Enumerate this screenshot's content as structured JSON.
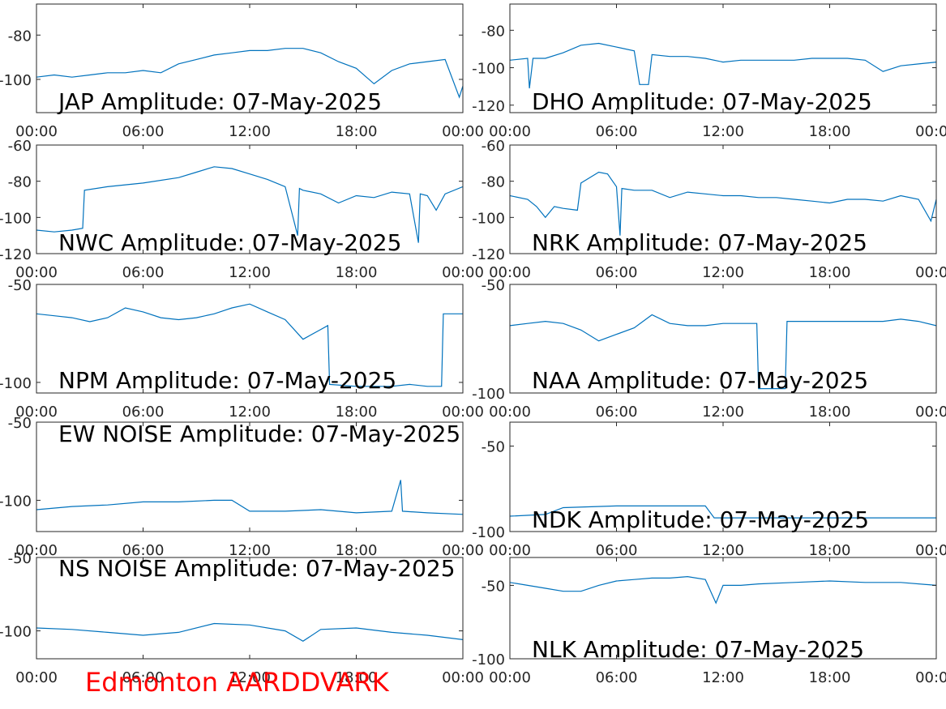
{
  "chart_data": [
    {
      "type": "line",
      "title": "JAP Amplitude: 07-May-2025",
      "x": [
        0,
        1,
        2,
        3,
        4,
        5,
        6,
        7,
        8,
        9,
        10,
        11,
        12,
        13,
        14,
        15,
        16,
        17,
        18,
        19,
        20,
        21,
        22,
        23,
        23.8,
        24
      ],
      "series": [
        {
          "color": "#0072bd",
          "values": [
            -99,
            -98,
            -99,
            -98,
            -97,
            -97,
            -96,
            -97,
            -93,
            -91,
            -89,
            -88,
            -87,
            -87,
            -86,
            -86,
            -88,
            -92,
            -95,
            -102,
            -96,
            -93,
            -92,
            -91,
            -108,
            -103
          ]
        }
      ],
      "xlim": [
        0,
        24
      ],
      "xticks": [
        {
          "value": 0,
          "label": "00:00"
        },
        {
          "value": 6,
          "label": "06:00"
        },
        {
          "value": 12,
          "label": "12:00"
        },
        {
          "value": 18,
          "label": "18:00"
        },
        {
          "value": 24,
          "label": "00:00"
        }
      ],
      "ylim": [
        -115,
        -66
      ],
      "yticks": [
        -100,
        -80
      ]
    },
    {
      "type": "line",
      "title": "DHO Amplitude: 07-May-2025",
      "x": [
        0,
        1,
        1.1,
        1.3,
        2,
        3,
        4,
        5,
        6,
        7,
        7.3,
        7.8,
        8,
        9,
        10,
        11,
        12,
        13,
        14,
        15,
        16,
        17,
        18,
        19,
        20,
        21,
        22,
        23,
        24
      ],
      "series": [
        {
          "color": "#0072bd",
          "values": [
            -96,
            -95,
            -111,
            -95,
            -95,
            -92,
            -88,
            -87,
            -89,
            -91,
            -109,
            -109,
            -93,
            -94,
            -94,
            -95,
            -97,
            -96,
            -96,
            -96,
            -96,
            -95,
            -95,
            -95,
            -96,
            -102,
            -99,
            -98,
            -97
          ]
        }
      ],
      "xlim": [
        0,
        24
      ],
      "xticks": [
        {
          "value": 0,
          "label": "00:00"
        },
        {
          "value": 6,
          "label": "06:00"
        },
        {
          "value": 12,
          "label": "12:00"
        },
        {
          "value": 18,
          "label": "18:00"
        },
        {
          "value": 24,
          "label": "00:00"
        }
      ],
      "ylim": [
        -124,
        -66
      ],
      "yticks": [
        -120,
        -100,
        -80
      ]
    },
    {
      "type": "line",
      "title": "NWC Amplitude: 07-May-2025",
      "x": [
        0,
        1,
        2,
        2.6,
        2.7,
        4,
        6,
        8,
        9,
        10,
        11,
        12,
        13,
        14,
        14.7,
        14.8,
        15,
        16,
        17,
        18,
        19,
        20,
        21,
        21.5,
        21.6,
        22,
        22.5,
        23,
        24
      ],
      "series": [
        {
          "color": "#0072bd",
          "values": [
            -107,
            -108,
            -107,
            -106,
            -85,
            -83,
            -81,
            -78,
            -75,
            -72,
            -73,
            -76,
            -79,
            -83,
            -110,
            -84,
            -85,
            -87,
            -92,
            -88,
            -89,
            -86,
            -87,
            -114,
            -87,
            -88,
            -96,
            -87,
            -83
          ]
        }
      ],
      "xlim": [
        0,
        24
      ],
      "xticks": [
        {
          "value": 0,
          "label": "00:00"
        },
        {
          "value": 6,
          "label": "06:00"
        },
        {
          "value": 12,
          "label": "12:00"
        },
        {
          "value": 18,
          "label": "18:00"
        },
        {
          "value": 24,
          "label": "00:00"
        }
      ],
      "ylim": [
        -120,
        -60
      ],
      "yticks": [
        -120,
        -100,
        -80,
        -60
      ]
    },
    {
      "type": "line",
      "title": "NRK Amplitude: 07-May-2025",
      "x": [
        0,
        1,
        1.5,
        2,
        2.5,
        3,
        3.8,
        4,
        5,
        5.5,
        6,
        6.2,
        6.3,
        7,
        8,
        9,
        10,
        11,
        12,
        13,
        14,
        15,
        16,
        17,
        18,
        19,
        20,
        21,
        22,
        23,
        23.7,
        24
      ],
      "series": [
        {
          "color": "#0072bd",
          "values": [
            -88,
            -90,
            -94,
            -100,
            -94,
            -95,
            -96,
            -81,
            -75,
            -76,
            -83,
            -110,
            -84,
            -85,
            -85,
            -89,
            -86,
            -87,
            -88,
            -88,
            -89,
            -89,
            -90,
            -91,
            -92,
            -90,
            -90,
            -91,
            -88,
            -90,
            -102,
            -90
          ]
        }
      ],
      "xlim": [
        0,
        24
      ],
      "xticks": [
        {
          "value": 0,
          "label": "00:00"
        },
        {
          "value": 6,
          "label": "06:00"
        },
        {
          "value": 12,
          "label": "12:00"
        },
        {
          "value": 18,
          "label": "18:00"
        },
        {
          "value": 24,
          "label": "00:00"
        }
      ],
      "ylim": [
        -120,
        -60
      ],
      "yticks": [
        -120,
        -100,
        -80,
        -60
      ]
    },
    {
      "type": "line",
      "title": "NPM Amplitude: 07-May-2025",
      "x": [
        0,
        1,
        2,
        3,
        4,
        5,
        6,
        7,
        8,
        9,
        10,
        11,
        12,
        13,
        14,
        15,
        16,
        16.4,
        16.5,
        18,
        20,
        21,
        22,
        22.8,
        22.9,
        24
      ],
      "series": [
        {
          "color": "#0072bd",
          "values": [
            -65,
            -66,
            -67,
            -69,
            -67,
            -62,
            -64,
            -67,
            -68,
            -67,
            -65,
            -62,
            -60,
            -64,
            -68,
            -78,
            -73,
            -71,
            -101,
            -102,
            -102,
            -101,
            -102,
            -102,
            -65,
            -65
          ]
        }
      ],
      "xlim": [
        0,
        24
      ],
      "xticks": [
        {
          "value": 0,
          "label": "00:00"
        },
        {
          "value": 6,
          "label": "06:00"
        },
        {
          "value": 12,
          "label": "12:00"
        },
        {
          "value": 18,
          "label": "18:00"
        },
        {
          "value": 24,
          "label": "00:00"
        }
      ],
      "ylim": [
        -105.4,
        -50
      ],
      "yticks": [
        -100,
        -50
      ]
    },
    {
      "type": "line",
      "title": "NAA Amplitude: 07-May-2025",
      "x": [
        0,
        1,
        2,
        3,
        4,
        5,
        6,
        7,
        8,
        9,
        10,
        11,
        12,
        13,
        13.9,
        14,
        15.5,
        15.6,
        17,
        18,
        19,
        20,
        21,
        22,
        23,
        24
      ],
      "series": [
        {
          "color": "#0072bd",
          "values": [
            -69,
            -68,
            -67,
            -68,
            -71,
            -76,
            -73,
            -70,
            -64,
            -68,
            -69,
            -69,
            -68,
            -68,
            -68,
            -98,
            -98,
            -67,
            -67,
            -67,
            -67,
            -67,
            -67,
            -66,
            -67,
            -69
          ]
        }
      ],
      "xlim": [
        0,
        24
      ],
      "xticks": [
        {
          "value": 0,
          "label": "00:00"
        },
        {
          "value": 6,
          "label": "06:00"
        },
        {
          "value": 12,
          "label": "12:00"
        },
        {
          "value": 18,
          "label": "18:00"
        },
        {
          "value": 24,
          "label": "00:00"
        }
      ],
      "ylim": [
        -100,
        -50
      ],
      "yticks": [
        -100,
        -50
      ]
    },
    {
      "type": "line",
      "title": "EW NOISE Amplitude: 07-May-2025",
      "x": [
        0,
        2,
        4,
        6,
        8,
        10,
        11,
        12,
        14,
        16,
        18,
        20,
        20.5,
        20.6,
        22,
        24
      ],
      "series": [
        {
          "color": "#0072bd",
          "values": [
            -106,
            -104,
            -103,
            -101,
            -101,
            -100,
            -100,
            -107,
            -107,
            -106,
            -108,
            -107,
            -87,
            -107,
            -108,
            -109
          ]
        }
      ],
      "xlim": [
        0,
        24
      ],
      "xticks": [
        {
          "value": 0,
          "label": "00:00"
        },
        {
          "value": 6,
          "label": "06:00"
        },
        {
          "value": 12,
          "label": "12:00"
        },
        {
          "value": 18,
          "label": "18:00"
        },
        {
          "value": 24,
          "label": "00:00"
        }
      ],
      "ylim": [
        -120,
        -50
      ],
      "yticks": [
        -100,
        -50
      ]
    },
    {
      "type": "line",
      "title": "NDK Amplitude: 07-May-2025",
      "x": [
        0,
        2,
        3,
        6,
        9,
        11,
        11.5,
        14,
        18,
        22,
        24
      ],
      "series": [
        {
          "color": "#0072bd",
          "values": [
            -91,
            -90,
            -86,
            -85,
            -85,
            -85,
            -92,
            -92,
            -92,
            -92,
            -92
          ]
        }
      ],
      "xlim": [
        0,
        24
      ],
      "xticks": [
        {
          "value": 0,
          "label": "00:00"
        },
        {
          "value": 6,
          "label": "06:00"
        },
        {
          "value": 12,
          "label": "12:00"
        },
        {
          "value": 18,
          "label": "18:00"
        },
        {
          "value": 24,
          "label": "00:00"
        }
      ],
      "ylim": [
        -100,
        -36
      ],
      "yticks": [
        -100,
        -50
      ]
    },
    {
      "type": "line",
      "title": "NS NOISE Amplitude: 07-May-2025",
      "x": [
        0,
        2,
        4,
        6,
        8,
        10,
        12,
        14,
        15,
        16,
        18,
        20,
        22,
        24
      ],
      "series": [
        {
          "color": "#0072bd",
          "values": [
            -98,
            -99,
            -101,
            -103,
            -101,
            -95,
            -96,
            -100,
            -107,
            -99,
            -98,
            -101,
            -103,
            -106
          ]
        }
      ],
      "xlim": [
        0,
        24
      ],
      "xticks": [
        {
          "value": 0,
          "label": "00:00"
        },
        {
          "value": 6,
          "label": "06:00"
        },
        {
          "value": 12,
          "label": "12:00"
        },
        {
          "value": 18,
          "label": "18:00"
        },
        {
          "value": 24,
          "label": "00:00"
        }
      ],
      "ylim": [
        -119,
        -50
      ],
      "yticks": [
        -100,
        -50
      ]
    },
    {
      "type": "line",
      "title": "NLK Amplitude: 07-May-2025",
      "x": [
        0,
        1,
        2,
        3,
        4,
        5,
        6,
        7,
        8,
        9,
        10,
        11,
        11.6,
        12,
        13,
        14,
        16,
        18,
        20,
        22,
        24
      ],
      "series": [
        {
          "color": "#0072bd",
          "values": [
            -48,
            -50,
            -52,
            -54,
            -54,
            -50,
            -47,
            -46,
            -45,
            -45,
            -44,
            -46,
            -62,
            -50,
            -50,
            -49,
            -48,
            -47,
            -48,
            -48,
            -50
          ]
        }
      ],
      "xlim": [
        0,
        24
      ],
      "xticks": [
        {
          "value": 0,
          "label": "00:00"
        },
        {
          "value": 6,
          "label": "06:00"
        },
        {
          "value": 12,
          "label": "12:00"
        },
        {
          "value": 18,
          "label": "18:00"
        },
        {
          "value": 24,
          "label": "00:00"
        }
      ],
      "ylim": [
        -100,
        -31
      ],
      "yticks": [
        -100,
        -50
      ]
    }
  ],
  "footer": "Edmonton AARDDVARK"
}
